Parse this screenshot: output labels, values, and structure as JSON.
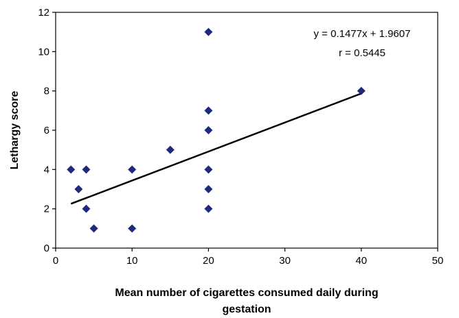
{
  "chart_data": {
    "type": "scatter",
    "xlabel_lines": [
      "Mean number of cigarettes consumed daily during",
      "gestation"
    ],
    "ylabel": "Lethargy score",
    "xlim": [
      0,
      50
    ],
    "ylim": [
      0,
      12
    ],
    "x_ticks": [
      "0",
      "10",
      "20",
      "30",
      "40",
      "50"
    ],
    "y_ticks": [
      "0",
      "2",
      "4",
      "6",
      "8",
      "10",
      "12"
    ],
    "grid": false,
    "points": [
      {
        "x": 2,
        "y": 4
      },
      {
        "x": 3,
        "y": 3
      },
      {
        "x": 4,
        "y": 4
      },
      {
        "x": 4,
        "y": 2
      },
      {
        "x": 5,
        "y": 1
      },
      {
        "x": 10,
        "y": 4
      },
      {
        "x": 10,
        "y": 1
      },
      {
        "x": 15,
        "y": 5
      },
      {
        "x": 20,
        "y": 11
      },
      {
        "x": 20,
        "y": 7
      },
      {
        "x": 20,
        "y": 6
      },
      {
        "x": 20,
        "y": 4
      },
      {
        "x": 20,
        "y": 3
      },
      {
        "x": 20,
        "y": 2
      },
      {
        "x": 40,
        "y": 8
      }
    ],
    "trendline": {
      "slope": 0.1477,
      "intercept": 1.9607,
      "x_from": 2,
      "x_to": 40
    },
    "annotations": [
      "y = 0.1477x + 1.9607",
      "r = 0.5445"
    ],
    "colors": {
      "marker": "#1F2A7A",
      "trendline": "#000000",
      "axis": "#000000"
    }
  }
}
